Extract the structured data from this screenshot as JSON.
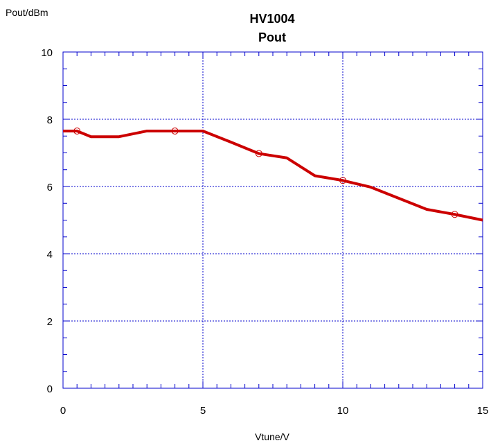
{
  "chart_data": {
    "type": "line",
    "title": "HV1004",
    "subtitle": "Pout",
    "xlabel": "Vtune/V",
    "ylabel": "Pout/dBm",
    "xlim": [
      0,
      15
    ],
    "ylim": [
      0,
      10
    ],
    "x_ticks": [
      0,
      5,
      10,
      15
    ],
    "y_ticks": [
      0,
      2,
      4,
      6,
      8,
      10
    ],
    "x_minor_step": 0.5,
    "y_minor_step": 0.5,
    "grid": true,
    "line_color": "#cc0000",
    "grid_color": "#0000cc",
    "series": [
      {
        "values_x": [
          0,
          0.5,
          1,
          2,
          3,
          4,
          5,
          6,
          7,
          8,
          9,
          10,
          11,
          12,
          13,
          14,
          15
        ],
        "values_y": [
          7.65,
          7.65,
          7.48,
          7.48,
          7.65,
          7.65,
          7.65,
          7.32,
          6.98,
          6.85,
          6.32,
          6.18,
          5.98,
          5.65,
          5.32,
          5.17,
          5.0
        ],
        "markers_x": [
          0.5,
          4,
          7,
          10,
          14
        ],
        "markers_y": [
          7.65,
          7.65,
          6.98,
          6.18,
          5.17
        ]
      }
    ]
  }
}
